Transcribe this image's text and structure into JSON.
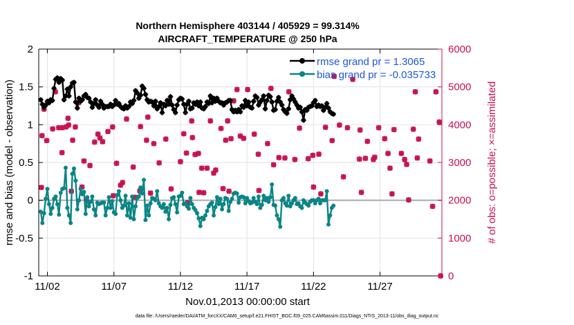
{
  "chart_data": {
    "type": "line",
    "title": "Northern Hemisphere 403144 / 405929 = 99.314%",
    "subtitle": "AIRCRAFT_TEMPERATURE @ 250 hPa",
    "xlabel": "Nov.01,2013 00:00:00 start",
    "ylabel": "rmse and bias (model - observation)",
    "y2label": "# of obs: o=possible; ×=assimilated",
    "xlim": [
      0.35,
      30.65
    ],
    "ylim": [
      -1,
      2
    ],
    "y2lim": [
      0,
      6000
    ],
    "x_ticks": [
      {
        "value": 1.0,
        "label": "11/02"
      },
      {
        "value": 6.0,
        "label": "11/07"
      },
      {
        "value": 11.0,
        "label": "11/12"
      },
      {
        "value": 16.0,
        "label": "11/17"
      },
      {
        "value": 21.0,
        "label": "11/22"
      },
      {
        "value": 26.0,
        "label": "11/27"
      }
    ],
    "y_ticks": [
      "-1",
      "-0.5",
      "0",
      "0.5",
      "1",
      "1.5",
      "2"
    ],
    "y2_ticks": [
      "0",
      "1000",
      "2000",
      "3000",
      "4000",
      "5000",
      "6000"
    ],
    "legend": [
      {
        "label": "rmse grand pr = 1.3065",
        "color": "#000000",
        "marker": "star"
      },
      {
        "label": "bias grand pr = -0.035733",
        "color": "#0b8585",
        "marker": "circle"
      }
    ],
    "x_step": 0.125,
    "x_start": 0.5,
    "series": [
      {
        "name": "rmse",
        "axis": "left",
        "color": "#000000",
        "values": [
          1.33,
          1.27,
          1.23,
          1.26,
          1.31,
          1.29,
          1.33,
          1.32,
          1.48,
          1.6,
          1.62,
          1.56,
          1.61,
          1.59,
          1.33,
          1.38,
          1.47,
          1.38,
          1.5,
          1.55,
          1.56,
          1.3,
          1.22,
          1.35,
          1.31,
          1.33,
          1.38,
          1.4,
          1.36,
          1.35,
          1.3,
          1.23,
          1.28,
          1.33,
          1.26,
          1.23,
          1.31,
          1.27,
          1.22,
          1.24,
          1.24,
          1.24,
          1.27,
          1.24,
          1.26,
          1.32,
          1.27,
          1.28,
          1.24,
          1.22,
          1.21,
          1.25,
          1.22,
          1.24,
          1.3,
          1.28,
          1.32,
          1.45,
          1.42,
          1.35,
          1.39,
          1.51,
          1.48,
          1.4,
          1.33,
          1.3,
          1.31,
          1.3,
          1.25,
          1.31,
          1.21,
          1.24,
          1.29,
          1.16,
          1.27,
          1.25,
          1.32,
          1.27,
          1.37,
          1.26,
          1.2,
          1.16,
          1.26,
          1.33,
          1.35,
          1.34,
          1.27,
          1.16,
          1.27,
          1.31,
          1.21,
          1.22,
          1.29,
          1.27,
          1.3,
          1.25,
          1.3,
          1.22,
          1.21,
          1.24,
          1.3,
          1.28,
          1.38,
          1.29,
          1.35,
          1.31,
          1.35,
          1.31,
          1.29,
          1.29,
          1.26,
          1.29,
          1.3,
          1.32,
          1.32,
          1.2,
          1.17,
          1.19,
          1.17,
          1.2,
          1.17,
          1.25,
          1.23,
          1.32,
          1.25,
          1.3,
          1.23,
          1.22,
          1.31,
          1.38,
          1.36,
          1.26,
          1.3,
          1.33,
          1.38,
          1.21,
          1.32,
          1.39,
          1.37,
          1.3,
          1.19,
          1.2,
          1.31,
          1.36,
          1.3,
          1.26,
          1.2,
          1.17,
          1.15,
          1.21,
          1.33,
          1.38,
          1.34,
          1.3,
          1.26,
          1.22,
          1.23,
          1.17,
          1.06,
          1.2,
          1.19,
          1.23,
          1.24,
          1.25,
          1.29,
          1.32,
          1.24,
          1.26,
          1.24,
          1.25,
          1.19,
          1.23,
          1.28,
          1.22,
          1.17,
          1.15,
          1.14
        ]
      },
      {
        "name": "bias",
        "axis": "left",
        "color": "#0b8585",
        "values": [
          -0.15,
          -0.3,
          -0.17,
          0.02,
          0.15,
          -0.05,
          -0.18,
          -0.1,
          0.02,
          0.05,
          -0.05,
          -0.19,
          0.1,
          0.15,
          0.16,
          0.43,
          -0.1,
          -0.2,
          -0.3,
          0.35,
          0.42,
          0.26,
          -0.12,
          0.0,
          0.15,
          0.08,
          0.11,
          -0.18,
          0.04,
          -0.08,
          -0.02,
          0.05,
          -0.12,
          -0.2,
          -0.03,
          -0.05,
          -0.04,
          -0.03,
          -0.03,
          -0.2,
          -0.1,
          0.04,
          -0.1,
          -0.01,
          -0.16,
          -0.18,
          0.07,
          0.12,
          0.0,
          -0.1,
          -0.07,
          0.06,
          -0.2,
          -0.04,
          -0.23,
          0.05,
          -0.25,
          -0.08,
          0.03,
          0.05,
          0.17,
          0.09,
          0.27,
          -0.26,
          -0.07,
          -0.2,
          -0.04,
          0.03,
          0.02,
          0.0,
          0.12,
          -0.04,
          -0.08,
          -0.1,
          -0.05,
          -0.15,
          -0.1,
          -0.25,
          -0.06,
          0.03,
          0.04,
          -0.05,
          -0.16,
          0.05,
          0.06,
          0.1,
          -0.05,
          -0.04,
          -0.08,
          -0.11,
          0.03,
          -0.05,
          -0.1,
          -0.13,
          -0.17,
          -0.24,
          -0.34,
          -0.23,
          -0.25,
          -0.2,
          -0.14,
          -0.08,
          -0.05,
          -0.03,
          -0.2,
          -0.09,
          0.04,
          -0.05,
          0.02,
          -0.12,
          -0.05,
          0.03,
          0.02,
          -0.14,
          -0.02,
          0.02,
          0.09,
          0.1,
          0.09,
          -0.03,
          0.04,
          0.05,
          0.04,
          -0.04,
          0.03,
          -0.01,
          -0.04,
          -0.03,
          0.03,
          -0.02,
          -0.05,
          0.05,
          -0.1,
          -0.06,
          0.06,
          0.0,
          0.03,
          -0.02,
          0.04,
          0.21,
          -0.06,
          -0.07,
          -0.2,
          -0.25,
          -0.35,
          0.0,
          0.03,
          -0.04,
          -0.07,
          0.06,
          -0.08,
          -0.04,
          0.0,
          0.03,
          -0.05,
          -0.04,
          -0.08,
          -0.1,
          0.0,
          -0.03,
          -0.05,
          -0.07,
          -0.02,
          0.0,
          0.0,
          -0.04,
          0.0,
          0.02,
          -0.04,
          0.0,
          0.0,
          0.0,
          0.12,
          -0.32,
          -0.2,
          -0.1,
          -0.07
        ]
      }
    ],
    "obs_possible": {
      "axis": "right",
      "color": "#c8104e",
      "points": [
        [
          0.55,
          2340
        ],
        [
          0.6,
          3710
        ],
        [
          0.75,
          4410
        ],
        [
          0.95,
          3580
        ],
        [
          1.4,
          3890
        ],
        [
          1.6,
          4870
        ],
        [
          1.85,
          3920
        ],
        [
          2.1,
          3260
        ],
        [
          2.1,
          3920
        ],
        [
          2.4,
          3940
        ],
        [
          2.55,
          4170
        ],
        [
          2.6,
          3990
        ],
        [
          2.8,
          2240
        ],
        [
          2.9,
          3590
        ],
        [
          3.1,
          3940
        ],
        [
          3.35,
          4580
        ],
        [
          3.6,
          2350
        ],
        [
          3.75,
          3040
        ],
        [
          3.95,
          2000
        ],
        [
          4.2,
          2920
        ],
        [
          4.55,
          3540
        ],
        [
          4.8,
          3750
        ],
        [
          4.95,
          3650
        ],
        [
          5.15,
          3550
        ],
        [
          5.55,
          3820
        ],
        [
          5.9,
          3940
        ],
        [
          5.95,
          2120
        ],
        [
          6.2,
          2980
        ],
        [
          6.5,
          2400
        ],
        [
          6.65,
          2470
        ],
        [
          6.95,
          4150
        ],
        [
          7.45,
          2880
        ],
        [
          7.6,
          2080
        ],
        [
          7.95,
          2250
        ],
        [
          8.0,
          3950
        ],
        [
          8.45,
          3590
        ],
        [
          8.55,
          4200
        ],
        [
          8.75,
          2190
        ],
        [
          9.0,
          3500
        ],
        [
          9.4,
          2990
        ],
        [
          9.9,
          3620
        ],
        [
          10.1,
          4640
        ],
        [
          10.3,
          2300
        ],
        [
          11.0,
          3020
        ],
        [
          11.25,
          3760
        ],
        [
          11.45,
          3250
        ],
        [
          11.55,
          1940
        ],
        [
          11.85,
          4100
        ],
        [
          11.9,
          3660
        ],
        [
          12.1,
          3210
        ],
        [
          12.35,
          3240
        ],
        [
          12.4,
          2210
        ],
        [
          12.6,
          2850
        ],
        [
          12.75,
          2200
        ],
        [
          13.0,
          2850
        ],
        [
          13.25,
          4100
        ],
        [
          13.5,
          2720
        ],
        [
          13.65,
          2800
        ],
        [
          14.05,
          3900
        ],
        [
          14.2,
          2310
        ],
        [
          14.4,
          3590
        ],
        [
          14.55,
          4100
        ],
        [
          14.65,
          2240
        ],
        [
          14.8,
          3630
        ],
        [
          15.0,
          4630
        ],
        [
          15.25,
          4930
        ],
        [
          15.5,
          3700
        ],
        [
          15.75,
          3640
        ],
        [
          16.05,
          4930
        ],
        [
          16.55,
          3750
        ],
        [
          16.85,
          3220
        ],
        [
          16.9,
          2260
        ],
        [
          17.55,
          3500
        ],
        [
          17.8,
          4960
        ],
        [
          18.0,
          2940
        ],
        [
          18.4,
          3130
        ],
        [
          18.85,
          3120
        ],
        [
          19.15,
          4870
        ],
        [
          19.6,
          3080
        ],
        [
          19.95,
          3910
        ],
        [
          20.6,
          3100
        ],
        [
          20.95,
          3190
        ],
        [
          21.0,
          2350
        ],
        [
          21.4,
          3220
        ],
        [
          21.55,
          2170
        ],
        [
          21.9,
          3930
        ],
        [
          22.4,
          3580
        ],
        [
          22.55,
          5280
        ],
        [
          22.95,
          3990
        ],
        [
          23.25,
          2620
        ],
        [
          23.55,
          3920
        ],
        [
          23.95,
          5200
        ],
        [
          24.45,
          3090
        ],
        [
          24.5,
          3860
        ],
        [
          24.6,
          2210
        ],
        [
          24.9,
          3110
        ],
        [
          25.05,
          3560
        ],
        [
          25.5,
          3080
        ],
        [
          25.6,
          3140
        ],
        [
          25.9,
          3920
        ],
        [
          26.35,
          3630
        ],
        [
          26.6,
          3240
        ],
        [
          26.75,
          2850
        ],
        [
          26.9,
          2170
        ],
        [
          27.05,
          3870
        ],
        [
          27.6,
          3240
        ],
        [
          27.85,
          3080
        ],
        [
          28.0,
          2950
        ],
        [
          28.15,
          2010
        ],
        [
          28.5,
          3880
        ],
        [
          28.65,
          4870
        ],
        [
          28.8,
          3120
        ],
        [
          28.9,
          3620
        ],
        [
          29.75,
          3040
        ],
        [
          29.95,
          1840
        ],
        [
          30.2,
          4870
        ],
        [
          30.45,
          4070
        ],
        [
          30.55,
          0
        ]
      ]
    }
  },
  "footnote": "data file: /Users/raeder/DAI/ATM_forcXX/CAM6_setup/f.e21.FHIST_BGC.f09_025.CAM6assim.011/Diags_NTrS_2013-11/obs_diag_output.nc"
}
